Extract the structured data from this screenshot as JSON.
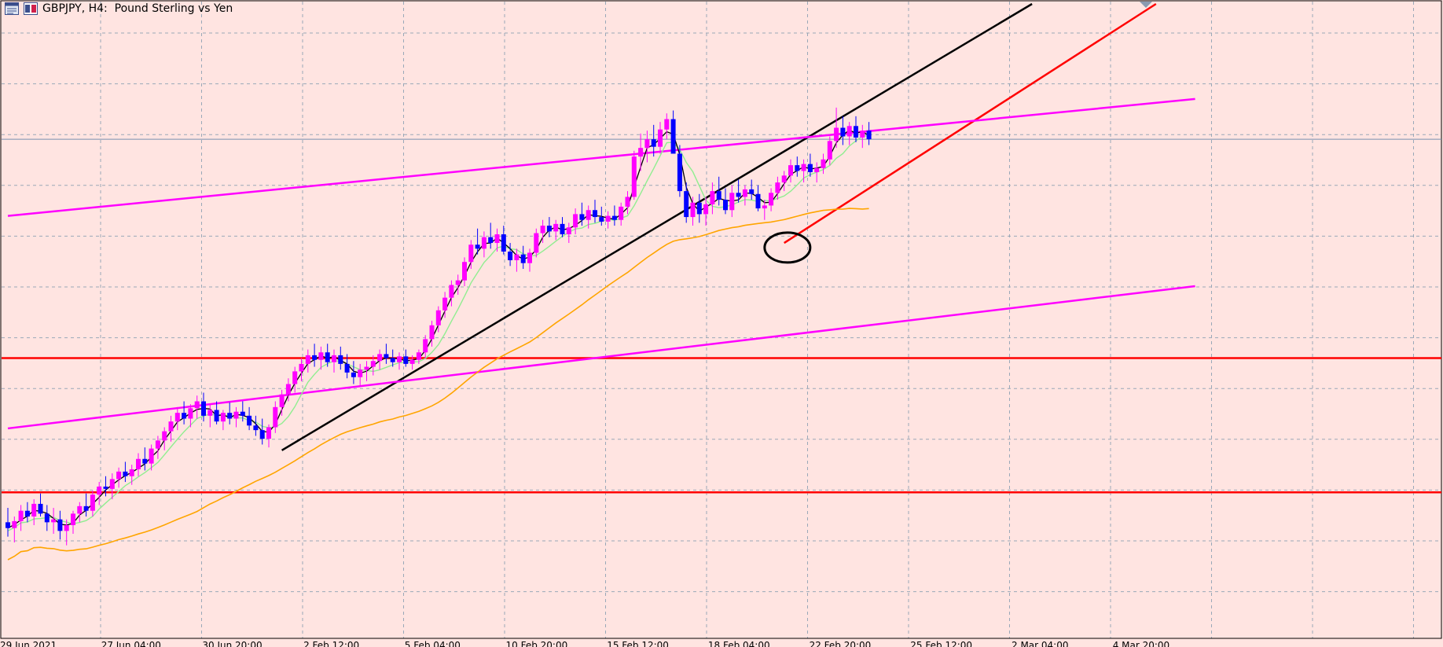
{
  "window": {
    "title": "GBPJPY, H4:  Pound Sterling vs Yen",
    "icons": [
      "chart-properties-icon",
      "color-palette-icon"
    ]
  },
  "colors": {
    "background": "#ffe4e1",
    "grid": "#9aa8b8",
    "bull_candle": "#ff00ff",
    "bear_candle": "#0000ff",
    "ma_fast": "#000000",
    "ma_mid": "#90ee90",
    "ma_slow": "#ffa500",
    "trendline_black": "#000000",
    "trendline_red": "#ff0000",
    "channel_magenta": "#ff00ff",
    "horizontal_level": "#ff0000",
    "marker_ellipse": "#000000"
  },
  "chart_data": {
    "type": "candlestick",
    "symbol": "GBPJPY",
    "timeframe": "H4",
    "description": "Pound Sterling vs Yen",
    "x_axis_labels": [
      "29 Jun 2021",
      "27 Jun 04:00",
      "30 Jun 20:00",
      "2 Feb 12:00",
      "5 Feb 04:00",
      "10 Feb 20:00",
      "15 Feb 12:00",
      "18 Feb 04:00",
      "22 Feb 20:00",
      "25 Feb 12:00",
      "2 Mar 04:00",
      "4 Mar 20:00"
    ],
    "grid": true,
    "candles_ohlc": [
      [
        150.2,
        150.45,
        149.95,
        150.1
      ],
      [
        150.1,
        150.3,
        149.85,
        150.22
      ],
      [
        150.22,
        150.5,
        150.05,
        150.4
      ],
      [
        150.4,
        150.55,
        150.2,
        150.3
      ],
      [
        150.3,
        150.6,
        150.15,
        150.52
      ],
      [
        150.52,
        150.7,
        150.3,
        150.35
      ],
      [
        150.35,
        150.5,
        150.05,
        150.2
      ],
      [
        150.2,
        150.45,
        150.0,
        150.25
      ],
      [
        150.25,
        150.4,
        149.9,
        150.05
      ],
      [
        150.05,
        150.25,
        149.8,
        150.15
      ],
      [
        150.15,
        150.4,
        150.0,
        150.35
      ],
      [
        150.35,
        150.55,
        150.2,
        150.48
      ],
      [
        150.48,
        150.7,
        150.3,
        150.4
      ],
      [
        150.4,
        150.75,
        150.3,
        150.68
      ],
      [
        150.68,
        150.9,
        150.5,
        150.82
      ],
      [
        150.82,
        151.0,
        150.65,
        150.78
      ],
      [
        150.78,
        151.05,
        150.6,
        150.95
      ],
      [
        150.95,
        151.15,
        150.8,
        151.08
      ],
      [
        151.08,
        151.25,
        150.9,
        151.0
      ],
      [
        151.0,
        151.2,
        150.85,
        151.12
      ],
      [
        151.12,
        151.4,
        151.0,
        151.3
      ],
      [
        151.3,
        151.5,
        151.1,
        151.22
      ],
      [
        151.22,
        151.55,
        151.1,
        151.48
      ],
      [
        151.48,
        151.7,
        151.3,
        151.62
      ],
      [
        151.62,
        151.85,
        151.45,
        151.78
      ],
      [
        151.78,
        152.05,
        151.6,
        151.95
      ],
      [
        151.95,
        152.2,
        151.8,
        152.1
      ],
      [
        152.1,
        152.3,
        151.9,
        152.0
      ],
      [
        152.0,
        152.25,
        151.85,
        152.18
      ],
      [
        152.18,
        152.4,
        152.0,
        152.3
      ],
      [
        152.3,
        152.45,
        151.95,
        152.05
      ],
      [
        152.05,
        152.25,
        151.85,
        152.15
      ],
      [
        152.15,
        152.3,
        151.9,
        151.95
      ],
      [
        151.95,
        152.15,
        151.8,
        152.1
      ],
      [
        152.1,
        152.28,
        151.9,
        152.0
      ],
      [
        152.0,
        152.2,
        151.85,
        152.12
      ],
      [
        152.12,
        152.3,
        151.95,
        152.05
      ],
      [
        152.05,
        152.2,
        151.8,
        151.88
      ],
      [
        151.88,
        152.05,
        151.7,
        151.8
      ],
      [
        151.8,
        152.0,
        151.55,
        151.65
      ],
      [
        151.65,
        151.9,
        151.5,
        151.85
      ],
      [
        151.85,
        152.3,
        151.75,
        152.2
      ],
      [
        152.2,
        152.5,
        152.05,
        152.42
      ],
      [
        152.42,
        152.7,
        152.3,
        152.6
      ],
      [
        152.6,
        152.9,
        152.45,
        152.82
      ],
      [
        152.82,
        153.05,
        152.65,
        152.95
      ],
      [
        152.95,
        153.2,
        152.8,
        153.1
      ],
      [
        153.1,
        153.3,
        152.9,
        153.02
      ],
      [
        153.02,
        153.25,
        152.85,
        153.15
      ],
      [
        153.15,
        153.3,
        152.9,
        152.98
      ],
      [
        152.98,
        153.2,
        152.8,
        153.1
      ],
      [
        153.1,
        153.25,
        152.85,
        152.95
      ],
      [
        152.95,
        153.12,
        152.7,
        152.8
      ],
      [
        152.8,
        153.0,
        152.6,
        152.72
      ],
      [
        152.72,
        152.95,
        152.55,
        152.85
      ],
      [
        152.85,
        153.0,
        152.65,
        152.9
      ],
      [
        152.9,
        153.1,
        152.75,
        153.0
      ],
      [
        153.0,
        153.2,
        152.85,
        153.12
      ],
      [
        153.12,
        153.3,
        152.95,
        153.05
      ],
      [
        153.05,
        153.2,
        152.9,
        152.98
      ],
      [
        152.98,
        153.15,
        152.85,
        153.08
      ],
      [
        153.08,
        153.2,
        152.9,
        152.95
      ],
      [
        152.95,
        153.1,
        152.85,
        153.02
      ],
      [
        153.02,
        153.2,
        152.95,
        153.15
      ],
      [
        153.15,
        153.45,
        153.05,
        153.38
      ],
      [
        153.38,
        153.7,
        153.25,
        153.62
      ],
      [
        153.62,
        153.95,
        153.5,
        153.88
      ],
      [
        153.88,
        154.2,
        153.75,
        154.1
      ],
      [
        154.1,
        154.4,
        153.95,
        154.32
      ],
      [
        154.32,
        154.5,
        154.15,
        154.4
      ],
      [
        154.4,
        154.8,
        154.3,
        154.72
      ],
      [
        154.72,
        155.1,
        154.6,
        155.02
      ],
      [
        155.02,
        155.3,
        154.85,
        154.95
      ],
      [
        154.95,
        155.25,
        154.8,
        155.15
      ],
      [
        155.15,
        155.4,
        154.95,
        155.05
      ],
      [
        155.05,
        155.3,
        154.9,
        155.2
      ],
      [
        155.2,
        155.35,
        154.85,
        154.9
      ],
      [
        154.9,
        155.05,
        154.65,
        154.75
      ],
      [
        154.75,
        154.95,
        154.55,
        154.85
      ],
      [
        154.85,
        155.0,
        154.6,
        154.7
      ],
      [
        154.7,
        154.95,
        154.55,
        154.88
      ],
      [
        154.88,
        155.3,
        154.8,
        155.22
      ],
      [
        155.22,
        155.45,
        155.05,
        155.35
      ],
      [
        155.35,
        155.5,
        155.15,
        155.25
      ],
      [
        155.25,
        155.45,
        155.1,
        155.38
      ],
      [
        155.38,
        155.5,
        155.15,
        155.2
      ],
      [
        155.2,
        155.4,
        155.05,
        155.32
      ],
      [
        155.32,
        155.65,
        155.2,
        155.55
      ],
      [
        155.55,
        155.75,
        155.35,
        155.45
      ],
      [
        155.45,
        155.7,
        155.3,
        155.62
      ],
      [
        155.62,
        155.8,
        155.4,
        155.5
      ],
      [
        155.5,
        155.68,
        155.35,
        155.42
      ],
      [
        155.42,
        155.6,
        155.3,
        155.52
      ],
      [
        155.52,
        155.7,
        155.35,
        155.45
      ],
      [
        155.45,
        155.75,
        155.35,
        155.68
      ],
      [
        155.68,
        155.95,
        155.55,
        155.85
      ],
      [
        155.85,
        156.65,
        155.8,
        156.55
      ],
      [
        156.55,
        156.95,
        156.3,
        156.7
      ],
      [
        156.7,
        157.0,
        156.45,
        156.85
      ],
      [
        156.85,
        157.1,
        156.55,
        156.72
      ],
      [
        156.72,
        157.15,
        156.6,
        157.02
      ],
      [
        157.02,
        157.3,
        156.85,
        157.2
      ],
      [
        157.2,
        157.35,
        156.8,
        156.6
      ],
      [
        156.6,
        156.75,
        155.85,
        155.95
      ],
      [
        155.95,
        156.1,
        155.4,
        155.5
      ],
      [
        155.5,
        155.85,
        155.35,
        155.75
      ],
      [
        155.75,
        155.9,
        155.4,
        155.55
      ],
      [
        155.55,
        155.85,
        155.35,
        155.72
      ],
      [
        155.72,
        156.1,
        155.55,
        155.95
      ],
      [
        155.95,
        156.2,
        155.7,
        155.8
      ],
      [
        155.8,
        156.0,
        155.55,
        155.62
      ],
      [
        155.62,
        156.05,
        155.5,
        155.92
      ],
      [
        155.92,
        156.15,
        155.75,
        155.85
      ],
      [
        155.85,
        156.05,
        155.7,
        155.98
      ],
      [
        155.98,
        156.15,
        155.8,
        155.9
      ],
      [
        155.9,
        156.05,
        155.6,
        155.65
      ],
      [
        155.65,
        155.8,
        155.45,
        155.7
      ],
      [
        155.7,
        156.0,
        155.6,
        155.92
      ],
      [
        155.92,
        156.2,
        155.8,
        156.1
      ],
      [
        156.1,
        156.3,
        155.95,
        156.22
      ],
      [
        156.22,
        156.5,
        156.1,
        156.4
      ],
      [
        156.4,
        156.55,
        156.2,
        156.3
      ],
      [
        156.3,
        156.5,
        156.1,
        156.42
      ],
      [
        156.42,
        156.6,
        156.2,
        156.28
      ],
      [
        156.28,
        156.45,
        156.1,
        156.35
      ],
      [
        156.35,
        156.6,
        156.25,
        156.5
      ],
      [
        156.5,
        156.9,
        156.4,
        156.82
      ],
      [
        156.82,
        157.4,
        156.7,
        157.05
      ],
      [
        157.05,
        157.25,
        156.75,
        156.9
      ],
      [
        156.9,
        157.15,
        156.75,
        157.08
      ],
      [
        157.08,
        157.25,
        156.8,
        156.88
      ],
      [
        156.88,
        157.1,
        156.7,
        157.0
      ],
      [
        157.0,
        157.15,
        156.75,
        156.85
      ]
    ],
    "indicators": [
      {
        "name": "MA fast",
        "color": "#000000"
      },
      {
        "name": "MA mid",
        "color": "#90ee90"
      },
      {
        "name": "MA slow",
        "color": "#ffa500"
      }
    ],
    "horizontal_levels": [
      153.05,
      150.72
    ],
    "trendlines": [
      {
        "color": "#000000",
        "from": {
          "bar": 42,
          "price": 151.45
        },
        "to": {
          "bar": 157,
          "price": 159.2
        }
      },
      {
        "color": "#ff0000",
        "from": {
          "bar": 119,
          "price": 155.05
        },
        "to": {
          "bar": 176,
          "price": 159.2
        }
      },
      {
        "color": "#ff00ff",
        "from": {
          "bar": 0,
          "price": 155.52
        },
        "to": {
          "bar": 182,
          "price": 157.55
        }
      },
      {
        "color": "#ff00ff",
        "from": {
          "bar": 0,
          "price": 151.83
        },
        "to": {
          "bar": 182,
          "price": 154.3
        }
      }
    ],
    "annotations": [
      {
        "shape": "ellipse",
        "color": "#000000",
        "center": {
          "bar": 119.5,
          "price": 154.97
        }
      }
    ],
    "price_range": [
      149.85,
      159.2
    ]
  }
}
